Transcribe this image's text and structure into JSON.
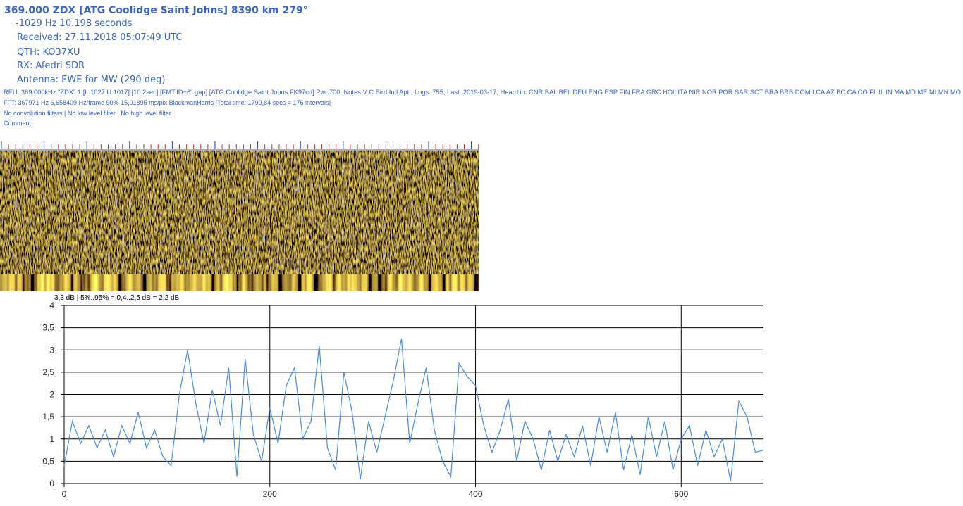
{
  "header": {
    "title": "369.000 ZDX [ATG Coolidge Saint Johns] 8390 km 279°",
    "offset": "-1029 Hz 10.198 seconds",
    "received": "Received: 27.11.2018 05:07:49 UTC",
    "qth": "QTH: KO37XU",
    "rx": "RX: Afedri SDR",
    "antenna": "Antenna: EWE for MW (290 deg)",
    "reu": "REU: 369.000kHz \"ZDX\" 1 [L:1027 U:1017] [10.2sec] [FMT:ID+6\" gap] [ATG Coolidge Saint Johns FK97cd] Pwr:700; Notes:V C Bird Intl Apt.; Logs: 755; Last: 2019-03-17; Heard in: CNR BAL BEL DEU ENG ESP FIN FRA GRC HOL ITA NIR NOR POR SAR SCT BRA BRB DOM LCA AZ BC CA CO FL IL IN MA MD ME MI MN MO",
    "fft": "FFT: 367971 Hz 6,658409 Hz/frame 90% 15,01895 ms/pix BlackmanHarris [Total time: 1799,84 secs = 176 intervals]",
    "filters": "No convolution filters | No low level filter | No high level filter",
    "comment": "Comment:"
  },
  "chart_data": {
    "type": "line",
    "subtitle": "3,3 dB | 5%..95% = 0,4..2,5 dB = 2,2 dB",
    "color": "#4a8ad8",
    "grid": true,
    "x": [
      0,
      8,
      16,
      24,
      32,
      40,
      48,
      56,
      64,
      72,
      80,
      88,
      96,
      104,
      112,
      120,
      128,
      136,
      144,
      152,
      160,
      168,
      176,
      184,
      192,
      200,
      208,
      216,
      224,
      232,
      240,
      248,
      256,
      264,
      272,
      280,
      288,
      296,
      304,
      312,
      320,
      328,
      336,
      344,
      352,
      360,
      368,
      376,
      384,
      392,
      400,
      408,
      416,
      424,
      432,
      440,
      448,
      456,
      464,
      472,
      480,
      488,
      496,
      504,
      512,
      520,
      528,
      536,
      544,
      552,
      560,
      568,
      576,
      584,
      592,
      600,
      608,
      616,
      624,
      632,
      640,
      648,
      656,
      664,
      672,
      680
    ],
    "values": [
      0.4,
      1.4,
      0.9,
      1.3,
      0.8,
      1.2,
      0.6,
      1.3,
      0.9,
      1.6,
      0.8,
      1.2,
      0.6,
      0.4,
      2.0,
      3.0,
      1.8,
      0.9,
      2.1,
      1.3,
      2.6,
      0.15,
      2.8,
      1.1,
      0.5,
      1.7,
      0.9,
      2.2,
      2.6,
      1.0,
      1.4,
      3.1,
      0.8,
      0.3,
      2.5,
      1.6,
      0.1,
      1.4,
      0.7,
      1.5,
      2.3,
      3.25,
      0.9,
      1.8,
      2.6,
      1.2,
      0.5,
      0.15,
      2.7,
      2.4,
      2.2,
      1.3,
      0.7,
      1.2,
      1.9,
      0.5,
      1.4,
      1.0,
      0.3,
      1.2,
      0.5,
      1.1,
      0.6,
      1.3,
      0.4,
      1.5,
      0.7,
      1.6,
      0.3,
      1.1,
      0.2,
      1.5,
      0.6,
      1.4,
      0.3,
      1.0,
      1.3,
      0.4,
      1.2,
      0.6,
      1.0,
      0.05,
      1.85,
      1.5,
      0.7,
      0.75
    ],
    "xlim": [
      0,
      680
    ],
    "xticks": [
      0,
      200,
      400,
      600
    ],
    "ylim": [
      0,
      4
    ],
    "yticks": [
      0,
      {
        "value": 0.5,
        "label": "0,5"
      },
      1,
      {
        "value": 1.5,
        "label": "1,5"
      },
      2,
      {
        "value": 2.5,
        "label": "2,5"
      },
      3,
      {
        "value": 3.5,
        "label": "3,5"
      },
      4
    ]
  }
}
